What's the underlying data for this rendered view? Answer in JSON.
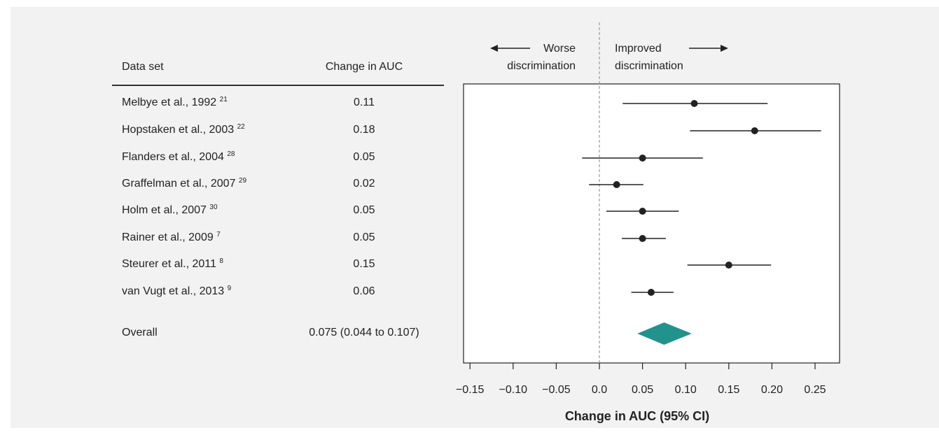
{
  "table": {
    "header_study": "Data set",
    "header_value": "Change in AUC",
    "rows": [
      {
        "label": "Melbye et al., 1992",
        "ref": "21",
        "value": "0.11"
      },
      {
        "label": "Hopstaken et al., 2003",
        "ref": "22",
        "value": "0.18"
      },
      {
        "label": "Flanders et al., 2004",
        "ref": "28",
        "value": "0.05"
      },
      {
        "label": "Graffelman et al., 2007",
        "ref": "29",
        "value": "0.02"
      },
      {
        "label": "Holm et al., 2007",
        "ref": "30",
        "value": "0.05"
      },
      {
        "label": "Rainer et al., 2009",
        "ref": "7",
        "value": "0.05"
      },
      {
        "label": "Steurer et al., 2011",
        "ref": "8",
        "value": "0.15"
      },
      {
        "label": "van Vugt et al., 2013",
        "ref": "9",
        "value": "0.06"
      }
    ],
    "overall_label": "Overall",
    "overall_value": "0.075 (0.044 to 0.107)"
  },
  "annotations": {
    "left_line1": "Worse",
    "left_line2": "discrimination",
    "right_line1": "Improved",
    "right_line2": "discrimination"
  },
  "chart_data": {
    "type": "forest",
    "xlabel": "Change in AUC (95% CI)",
    "xlim": [
      -0.17,
      0.28
    ],
    "xticks": [
      -0.15,
      -0.1,
      -0.05,
      0.0,
      0.05,
      0.1,
      0.15,
      0.2,
      0.25
    ],
    "xtick_labels": [
      "−0.15",
      "−0.10",
      "−0.05",
      "0.0",
      "0.05",
      "0.10",
      "0.15",
      "0.20",
      "0.25"
    ],
    "reference_line": 0,
    "points": [
      {
        "study": "Melbye et al., 1992",
        "estimate": 0.11,
        "lower": 0.027,
        "upper": 0.195
      },
      {
        "study": "Hopstaken et al., 2003",
        "estimate": 0.18,
        "lower": 0.105,
        "upper": 0.257
      },
      {
        "study": "Flanders et al., 2004",
        "estimate": 0.05,
        "lower": -0.02,
        "upper": 0.12
      },
      {
        "study": "Graffelman et al., 2007",
        "estimate": 0.02,
        "lower": -0.012,
        "upper": 0.051
      },
      {
        "study": "Holm et al., 2007",
        "estimate": 0.05,
        "lower": 0.008,
        "upper": 0.092
      },
      {
        "study": "Rainer et al., 2009",
        "estimate": 0.05,
        "lower": 0.026,
        "upper": 0.077
      },
      {
        "study": "Steurer et al., 2011",
        "estimate": 0.15,
        "lower": 0.102,
        "upper": 0.199
      },
      {
        "study": "van Vugt et al., 2013",
        "estimate": 0.06,
        "lower": 0.037,
        "upper": 0.086
      }
    ],
    "overall": {
      "estimate": 0.075,
      "lower": 0.044,
      "upper": 0.107
    },
    "colors": {
      "point": "#222222",
      "diamond": "#22938c",
      "reference": "#999999"
    }
  }
}
